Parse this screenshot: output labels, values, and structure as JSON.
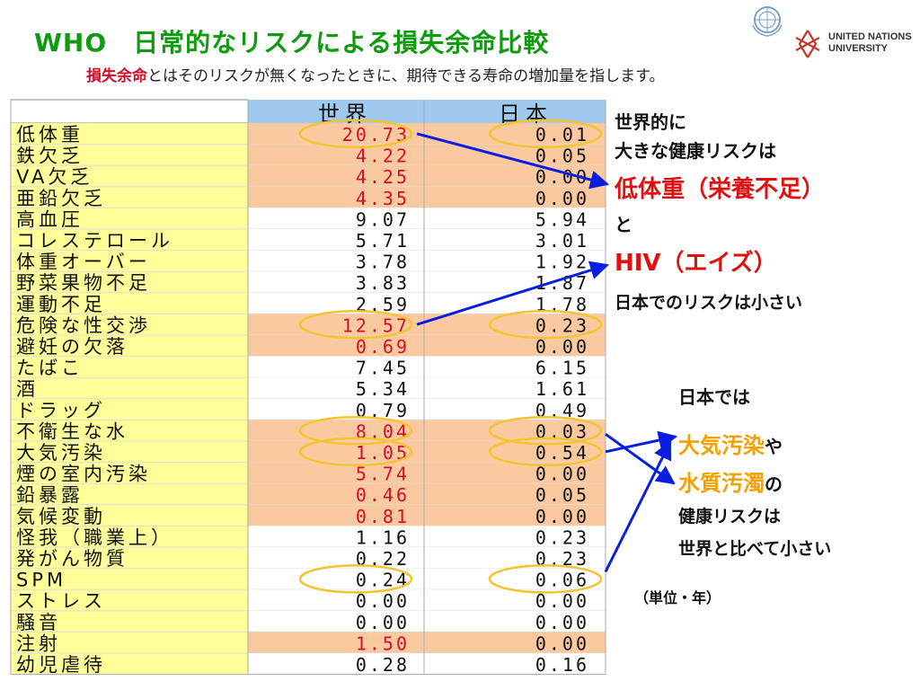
{
  "title": "WHO　日常的なリスクによる損失余命比較",
  "subtitle": {
    "term": "損失余命",
    "rest": "とはそのリスクが無くなったときに、期待できる寿命の増加量を指します。"
  },
  "logo": {
    "line1": "UNITED NATIONS",
    "line2": "UNIVERSITY"
  },
  "notes": {
    "world_line1": "世界的に",
    "world_line2": "大きな健康リスクは",
    "underweight": "低体重（栄養不足）",
    "and": "と",
    "hiv": "HIV（エイズ）",
    "japan_small": "日本でのリスクは小さい",
    "japan_is": "日本では",
    "air_pollution": "大気汚染",
    "ya": "や",
    "water_pollution": "水質汚濁",
    "no": "の",
    "health_risk": "健康リスクは",
    "smaller": "世界と比べて小さい"
  },
  "unit": "（単位・年）",
  "colors": {
    "title_green": "#109a10",
    "highlight_red": "#d0102a",
    "row_highlight": "#fbc9a0",
    "label_col": "#ffff99",
    "header_blue": "#9fc9ee",
    "ellipse": "#f4c430",
    "arrow": "#0a1ee0"
  },
  "chart_data": {
    "type": "table",
    "columns": [
      "世界",
      "日本"
    ],
    "rows": [
      {
        "label": "低体重",
        "world": "20.73",
        "japan": "0.01",
        "highlight": true
      },
      {
        "label": "鉄欠乏",
        "world": "4.22",
        "japan": "0.05",
        "highlight": true
      },
      {
        "label": "VA欠乏",
        "world": "4.25",
        "japan": "0.00",
        "highlight": true
      },
      {
        "label": "亜鉛欠乏",
        "world": "4.35",
        "japan": "0.00",
        "highlight": true
      },
      {
        "label": "高血圧",
        "world": "9.07",
        "japan": "5.94",
        "highlight": false
      },
      {
        "label": "コレステロール",
        "world": "5.71",
        "japan": "3.01",
        "highlight": false
      },
      {
        "label": "体重オーバー",
        "world": "3.78",
        "japan": "1.92",
        "highlight": false
      },
      {
        "label": "野菜果物不足",
        "world": "3.83",
        "japan": "1.87",
        "highlight": false
      },
      {
        "label": "運動不足",
        "world": "2.59",
        "japan": "1.78",
        "highlight": false
      },
      {
        "label": "危険な性交渉",
        "world": "12.57",
        "japan": "0.23",
        "highlight": true
      },
      {
        "label": "避妊の欠落",
        "world": "0.69",
        "japan": "0.00",
        "highlight": true
      },
      {
        "label": "たばこ",
        "world": "7.45",
        "japan": "6.15",
        "highlight": false
      },
      {
        "label": "酒",
        "world": "5.34",
        "japan": "1.61",
        "highlight": false
      },
      {
        "label": "ドラッグ",
        "world": "0.79",
        "japan": "0.49",
        "highlight": false
      },
      {
        "label": "不衛生な水",
        "world": "8.04",
        "japan": "0.03",
        "highlight": true
      },
      {
        "label": "大気汚染",
        "world": "1.05",
        "japan": "0.54",
        "highlight": true
      },
      {
        "label": "煙の室内汚染",
        "world": "5.74",
        "japan": "0.00",
        "highlight": true
      },
      {
        "label": "鉛暴露",
        "world": "0.46",
        "japan": "0.05",
        "highlight": true
      },
      {
        "label": "気候変動",
        "world": "0.81",
        "japan": "0.00",
        "highlight": true
      },
      {
        "label": "怪我（職業上）",
        "world": "1.16",
        "japan": "0.23",
        "highlight": false
      },
      {
        "label": "発がん物質",
        "world": "0.22",
        "japan": "0.23",
        "highlight": false
      },
      {
        "label": "SPM",
        "world": "0.24",
        "japan": "0.06",
        "highlight": false
      },
      {
        "label": "ストレス",
        "world": "0.00",
        "japan": "0.00",
        "highlight": false
      },
      {
        "label": "騒音",
        "world": "0.00",
        "japan": "0.00",
        "highlight": false
      },
      {
        "label": "注射",
        "world": "1.50",
        "japan": "0.00",
        "highlight": true
      },
      {
        "label": "幼児虐待",
        "world": "0.28",
        "japan": "0.16",
        "highlight": false
      }
    ],
    "circled_rows": [
      "低体重",
      "危険な性交渉",
      "不衛生な水",
      "大気汚染",
      "SPM"
    ]
  }
}
